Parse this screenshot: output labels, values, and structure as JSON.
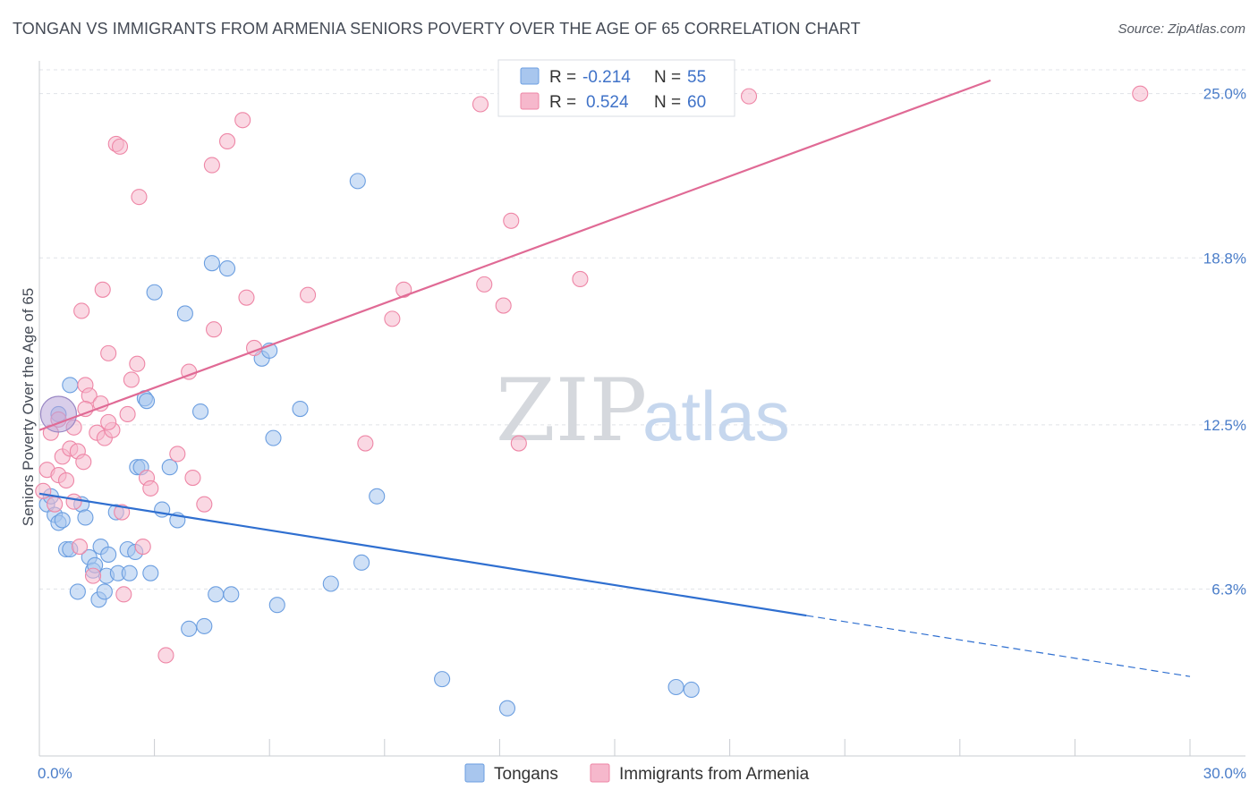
{
  "title": "TONGAN VS IMMIGRANTS FROM ARMENIA SENIORS POVERTY OVER THE AGE OF 65 CORRELATION CHART",
  "source": "Source: ZipAtlas.com",
  "watermark": {
    "zip": "ZIP",
    "atlas": "atlas"
  },
  "legend_box": [
    {
      "r_label": "R =",
      "r_value": "-0.214",
      "n_label": "N =",
      "n_value": "55",
      "color": "#a8c6ee"
    },
    {
      "r_label": "R =",
      "r_value": "0.524",
      "n_label": "N =",
      "n_value": "60",
      "color": "#f6b8cc"
    }
  ],
  "chart_data": {
    "type": "scatter",
    "title": "TONGAN VS IMMIGRANTS FROM ARMENIA SENIORS POVERTY OVER THE AGE OF 65 CORRELATION CHART",
    "ylabel": "Seniors Poverty Over the Age of 65",
    "xlim": [
      0,
      30
    ],
    "ylim": [
      0,
      25.9
    ],
    "x_tick_labels": [
      "0.0%",
      "30.0%"
    ],
    "y_ticks": [
      6.3,
      12.5,
      18.8,
      25.0
    ],
    "y_tick_labels": [
      "6.3%",
      "12.5%",
      "18.8%",
      "25.0%"
    ],
    "grid": true,
    "legend_placement": "bottom-center",
    "series": [
      {
        "name": "Tongans",
        "color": "#6b9ee0",
        "fill": "#a8c6ee",
        "points": [
          [
            0.2,
            9.5
          ],
          [
            0.3,
            9.8
          ],
          [
            0.4,
            9.1
          ],
          [
            0.5,
            8.8
          ],
          [
            0.6,
            8.9
          ],
          [
            0.7,
            7.8
          ],
          [
            0.8,
            7.8
          ],
          [
            0.8,
            14.0
          ],
          [
            1.0,
            6.2
          ],
          [
            1.1,
            9.5
          ],
          [
            1.2,
            9.0
          ],
          [
            1.3,
            7.5
          ],
          [
            1.4,
            7.0
          ],
          [
            1.45,
            7.2
          ],
          [
            1.55,
            5.9
          ],
          [
            1.6,
            7.9
          ],
          [
            1.7,
            6.2
          ],
          [
            1.75,
            6.8
          ],
          [
            1.8,
            7.6
          ],
          [
            2.0,
            9.2
          ],
          [
            2.05,
            6.9
          ],
          [
            2.3,
            7.8
          ],
          [
            2.35,
            6.9
          ],
          [
            2.5,
            7.7
          ],
          [
            2.55,
            10.9
          ],
          [
            2.65,
            10.9
          ],
          [
            2.75,
            13.5
          ],
          [
            2.9,
            6.9
          ],
          [
            3.0,
            17.5
          ],
          [
            3.2,
            9.3
          ],
          [
            3.4,
            10.9
          ],
          [
            3.6,
            8.9
          ],
          [
            3.8,
            16.7
          ],
          [
            3.9,
            4.8
          ],
          [
            4.3,
            4.9
          ],
          [
            4.5,
            18.6
          ],
          [
            4.6,
            6.1
          ],
          [
            4.9,
            18.4
          ],
          [
            5.0,
            6.1
          ],
          [
            5.8,
            15.0
          ],
          [
            6.0,
            15.3
          ],
          [
            6.1,
            12.0
          ],
          [
            6.2,
            5.7
          ],
          [
            7.6,
            6.5
          ],
          [
            8.3,
            21.7
          ],
          [
            8.4,
            7.3
          ],
          [
            8.8,
            9.8
          ],
          [
            10.5,
            2.9
          ],
          [
            12.2,
            1.8
          ],
          [
            16.6,
            2.6
          ],
          [
            17.0,
            2.5
          ],
          [
            0.5,
            12.9
          ],
          [
            2.8,
            13.4
          ],
          [
            4.2,
            13.0
          ],
          [
            6.8,
            13.1
          ]
        ]
      },
      {
        "name": "Immigrants from Armenia",
        "color": "#ee86a6",
        "fill": "#f6b8cc",
        "points": [
          [
            0.1,
            10.0
          ],
          [
            0.2,
            10.8
          ],
          [
            0.3,
            12.2
          ],
          [
            0.4,
            9.5
          ],
          [
            0.5,
            10.6
          ],
          [
            0.6,
            11.3
          ],
          [
            0.7,
            10.4
          ],
          [
            0.8,
            11.6
          ],
          [
            0.9,
            9.6
          ],
          [
            1.0,
            11.5
          ],
          [
            1.05,
            7.9
          ],
          [
            1.1,
            16.8
          ],
          [
            1.15,
            11.1
          ],
          [
            1.2,
            14.0
          ],
          [
            1.3,
            13.6
          ],
          [
            1.4,
            6.8
          ],
          [
            1.5,
            12.2
          ],
          [
            1.6,
            13.3
          ],
          [
            1.65,
            17.6
          ],
          [
            1.7,
            12.0
          ],
          [
            1.8,
            15.2
          ],
          [
            1.9,
            12.3
          ],
          [
            2.0,
            23.1
          ],
          [
            2.1,
            23.0
          ],
          [
            2.15,
            9.2
          ],
          [
            2.2,
            6.1
          ],
          [
            2.4,
            14.2
          ],
          [
            2.55,
            14.8
          ],
          [
            2.6,
            21.1
          ],
          [
            2.7,
            7.9
          ],
          [
            2.8,
            10.5
          ],
          [
            2.9,
            10.1
          ],
          [
            3.3,
            3.8
          ],
          [
            3.6,
            11.4
          ],
          [
            3.9,
            14.5
          ],
          [
            4.0,
            10.5
          ],
          [
            4.3,
            9.5
          ],
          [
            4.5,
            22.3
          ],
          [
            4.55,
            16.1
          ],
          [
            4.9,
            23.2
          ],
          [
            5.3,
            24.0
          ],
          [
            5.4,
            17.3
          ],
          [
            5.6,
            15.4
          ],
          [
            7.0,
            17.4
          ],
          [
            8.5,
            11.8
          ],
          [
            9.2,
            16.5
          ],
          [
            9.5,
            17.6
          ],
          [
            11.5,
            24.6
          ],
          [
            11.6,
            17.8
          ],
          [
            12.1,
            17.0
          ],
          [
            12.3,
            20.2
          ],
          [
            12.5,
            11.8
          ],
          [
            14.1,
            18.0
          ],
          [
            18.5,
            24.9
          ],
          [
            28.7,
            25.0
          ],
          [
            0.5,
            12.7
          ],
          [
            0.9,
            12.4
          ],
          [
            1.2,
            13.1
          ],
          [
            1.8,
            12.6
          ],
          [
            2.3,
            12.9
          ]
        ]
      }
    ],
    "trend_lines": [
      {
        "series": "Tongans",
        "x": [
          0,
          20
        ],
        "y": [
          9.9,
          5.3
        ],
        "dashed_extension_to_x": 30,
        "dashed_extension_y": 3.0
      },
      {
        "series": "Immigrants from Armenia",
        "x": [
          0,
          24.8
        ],
        "y": [
          12.3,
          25.5
        ]
      }
    ]
  }
}
